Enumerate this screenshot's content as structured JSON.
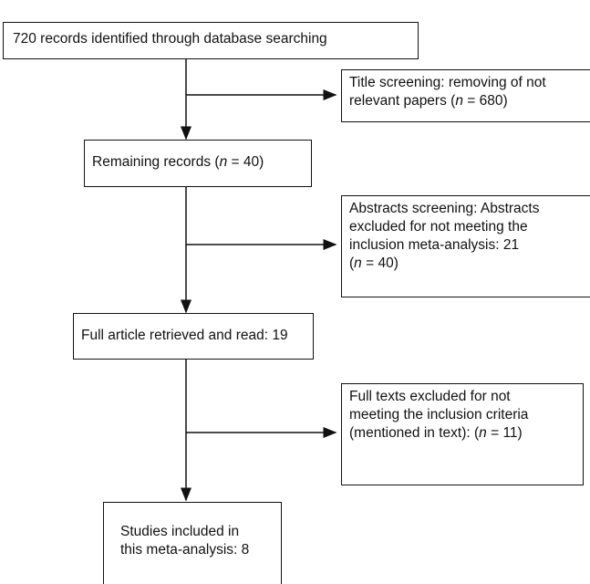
{
  "boxes": {
    "identified": {
      "text": "720 records identified through database searching"
    },
    "title_screening": {
      "line1": "Title screening: removing of not",
      "line2_pre": "relevant papers (",
      "n_symbol": "n",
      "line2_post": " = 680)"
    },
    "remaining": {
      "pre": "Remaining records (",
      "n_symbol": "n",
      "post": " = 40)"
    },
    "abstract_screening": {
      "line1": "Abstracts screening: Abstracts",
      "line2": "excluded for not meeting the",
      "line3": "inclusion meta-analysis: 21",
      "line4_pre": "(",
      "n_symbol": "n",
      "line4_post": " = 40)"
    },
    "full_article": {
      "text": "Full article retrieved and read: 19"
    },
    "full_texts_excluded": {
      "line1": "Full texts excluded for not",
      "line2": "meeting the inclusion criteria",
      "line3_pre": "(mentioned in text): (",
      "n_symbol": "n",
      "line3_post": " = 11)"
    },
    "included": {
      "line1": "Studies included in",
      "line2": "this meta-analysis: 8"
    }
  },
  "colors": {
    "stroke": "#111111",
    "background": "#ffffff"
  }
}
